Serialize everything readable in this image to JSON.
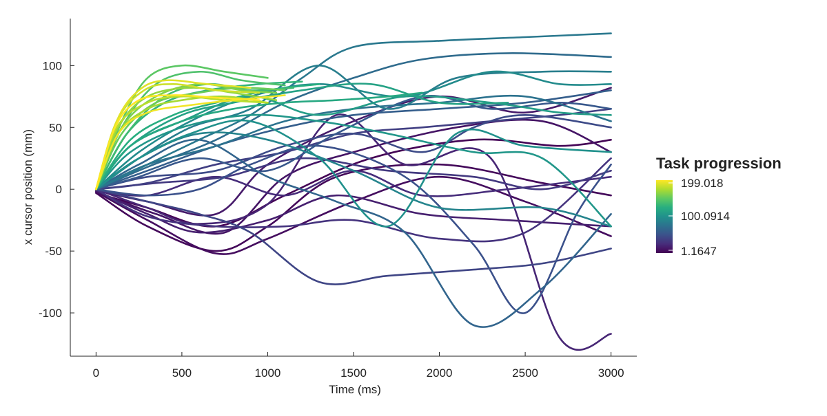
{
  "chart_data": {
    "type": "line",
    "title": "",
    "xlabel": "Time (ms)",
    "ylabel": "x cursor position (mm)",
    "xlim": [
      -150,
      3150
    ],
    "ylim": [
      -135,
      138
    ],
    "x_ticks": [
      0,
      500,
      1000,
      1500,
      2000,
      2500,
      3000
    ],
    "x_tick_labels": [
      "0",
      "500",
      "1000",
      "1500",
      "2000",
      "2500",
      "3000"
    ],
    "y_ticks": [
      -100,
      -50,
      0,
      50,
      100
    ],
    "y_tick_labels": [
      "-100",
      "-50",
      "0",
      "50",
      "100"
    ],
    "grid": false,
    "colorbar": {
      "title": "Task progression",
      "colormap": "viridis",
      "range": [
        1.1647,
        199.018
      ],
      "tick_labels": [
        "199.018",
        "100.0914",
        "1.1647"
      ],
      "legend_position": "right"
    },
    "series": [
      {
        "progress": 2,
        "x": [
          0,
          300,
          700,
          1100,
          1600,
          2200,
          2700,
          3000
        ],
        "y": [
          -3,
          -15,
          -30,
          -5,
          25,
          40,
          35,
          40
        ]
      },
      {
        "progress": 5,
        "x": [
          0,
          300,
          700,
          1000,
          1400,
          2000,
          2600,
          3000
        ],
        "y": [
          -3,
          -30,
          -50,
          -30,
          10,
          20,
          5,
          -5
        ]
      },
      {
        "progress": 8,
        "x": [
          0,
          300,
          700,
          1000,
          1500,
          2000,
          2500,
          3000
        ],
        "y": [
          -2,
          -25,
          -52,
          -40,
          -10,
          10,
          -10,
          -38
        ]
      },
      {
        "progress": 12,
        "x": [
          0,
          350,
          750,
          1100,
          1500,
          2100,
          2600,
          3000
        ],
        "y": [
          -2,
          -20,
          -35,
          10,
          30,
          50,
          55,
          30
        ]
      },
      {
        "progress": 15,
        "x": [
          0,
          300,
          700,
          1000,
          1500,
          2000,
          2500,
          3000
        ],
        "y": [
          -1,
          -10,
          -20,
          20,
          55,
          75,
          62,
          82
        ]
      },
      {
        "progress": 18,
        "x": [
          0,
          300,
          600,
          1000,
          1400,
          1900,
          2400,
          3000
        ],
        "y": [
          -1,
          -20,
          -35,
          -25,
          -5,
          -20,
          -25,
          -30
        ]
      },
      {
        "progress": 22,
        "x": [
          0,
          300,
          600,
          1000,
          1400,
          1800,
          2300,
          2700,
          3000
        ],
        "y": [
          0,
          -15,
          -28,
          -12,
          60,
          20,
          25,
          -120,
          -117
        ]
      },
      {
        "progress": 26,
        "x": [
          0,
          300,
          700,
          1100,
          1500,
          1900,
          2400,
          3000
        ],
        "y": [
          0,
          -5,
          10,
          -5,
          15,
          -5,
          0,
          10
        ]
      },
      {
        "progress": 30,
        "x": [
          0,
          300,
          700,
          1100,
          1500,
          2000,
          2500,
          3000
        ],
        "y": [
          0,
          -22,
          -30,
          -30,
          -25,
          -40,
          -35,
          25
        ]
      },
      {
        "progress": 34,
        "x": [
          0,
          350,
          750,
          1200,
          1700,
          2200,
          2600,
          3000
        ],
        "y": [
          0,
          5,
          10,
          25,
          15,
          10,
          0,
          15
        ]
      },
      {
        "progress": 38,
        "x": [
          0,
          300,
          700,
          1100,
          1500,
          1900,
          2300,
          2700,
          3000
        ],
        "y": [
          0,
          5,
          20,
          30,
          45,
          50,
          55,
          60,
          65
        ]
      },
      {
        "progress": 42,
        "x": [
          0,
          300,
          600,
          900,
          1300,
          1700,
          2200,
          2600,
          3000
        ],
        "y": [
          0,
          -10,
          -20,
          -35,
          -75,
          -70,
          -65,
          -60,
          -48
        ]
      },
      {
        "progress": 46,
        "x": [
          0,
          300,
          700,
          1100,
          1500,
          1900,
          2200,
          2500,
          3000
        ],
        "y": [
          0,
          10,
          15,
          35,
          45,
          30,
          50,
          60,
          50
        ]
      },
      {
        "progress": 50,
        "x": [
          0,
          300,
          600,
          900,
          1300,
          1800,
          2200,
          2500,
          2800,
          3000
        ],
        "y": [
          0,
          -5,
          0,
          20,
          35,
          10,
          -45,
          -100,
          -20,
          20
        ]
      },
      {
        "progress": 55,
        "x": [
          0,
          250,
          600,
          1000,
          1400,
          1900,
          2300,
          2700,
          3000
        ],
        "y": [
          0,
          10,
          25,
          15,
          45,
          75,
          65,
          70,
          65
        ]
      },
      {
        "progress": 60,
        "x": [
          0,
          300,
          700,
          1100,
          1500,
          2000,
          2500,
          3000
        ],
        "y": [
          0,
          15,
          35,
          50,
          60,
          65,
          70,
          80
        ]
      },
      {
        "progress": 65,
        "x": [
          0,
          250,
          600,
          1000,
          1400,
          1800,
          2200,
          2600,
          3000
        ],
        "y": [
          0,
          20,
          40,
          10,
          -10,
          -35,
          -110,
          -80,
          -20
        ]
      },
      {
        "progress": 70,
        "x": [
          0,
          300,
          700,
          1100,
          1500,
          1900,
          2400,
          3000
        ],
        "y": [
          0,
          18,
          40,
          70,
          90,
          105,
          110,
          107
        ]
      },
      {
        "progress": 75,
        "x": [
          0,
          300,
          700,
          1100,
          1500,
          2000,
          2500,
          3000
        ],
        "y": [
          0,
          20,
          35,
          55,
          65,
          70,
          75,
          55
        ]
      },
      {
        "progress": 80,
        "x": [
          0,
          300,
          600,
          900,
          1200,
          1500,
          2000,
          2500,
          3000
        ],
        "y": [
          0,
          20,
          40,
          60,
          90,
          115,
          120,
          123,
          126
        ]
      },
      {
        "progress": 85,
        "x": [
          0,
          250,
          550,
          900,
          1300,
          1700,
          2100,
          2600,
          3000
        ],
        "y": [
          0,
          25,
          50,
          65,
          100,
          65,
          90,
          95,
          95
        ]
      },
      {
        "progress": 90,
        "x": [
          0,
          250,
          600,
          1000,
          1500,
          2000,
          2600,
          3000
        ],
        "y": [
          0,
          25,
          45,
          40,
          15,
          -15,
          -15,
          -30
        ]
      },
      {
        "progress": 95,
        "x": [
          0,
          250,
          550,
          900,
          1300,
          1800,
          2300,
          2700,
          3000
        ],
        "y": [
          0,
          30,
          55,
          75,
          85,
          75,
          95,
          85,
          85
        ]
      },
      {
        "progress": 100,
        "x": [
          0,
          250,
          550,
          900,
          1300,
          1700,
          2100,
          2500,
          3000
        ],
        "y": [
          0,
          25,
          45,
          55,
          25,
          -30,
          45,
          35,
          30
        ]
      },
      {
        "progress": 105,
        "x": [
          0,
          200,
          500,
          900,
          1300,
          1700,
          2200,
          2600,
          3000
        ],
        "y": [
          0,
          30,
          50,
          60,
          55,
          45,
          30,
          25,
          -30
        ]
      },
      {
        "progress": 110,
        "x": [
          0,
          200,
          500,
          900,
          1300,
          1800,
          2300,
          2700,
          3000
        ],
        "y": [
          0,
          35,
          55,
          75,
          60,
          75,
          70,
          62,
          60
        ]
      },
      {
        "progress": 115,
        "x": [
          0,
          200,
          500,
          800,
          1200,
          1600,
          2000,
          2400
        ],
        "y": [
          0,
          35,
          60,
          70,
          80,
          85,
          70,
          70
        ]
      },
      {
        "progress": 120,
        "x": [
          0,
          200,
          500,
          800,
          1100,
          1400,
          1700,
          1900
        ],
        "y": [
          0,
          35,
          55,
          65,
          70,
          72,
          75,
          78
        ]
      },
      {
        "progress": 125,
        "x": [
          0,
          200,
          450,
          700,
          1000,
          1300
        ],
        "y": [
          0,
          40,
          60,
          70,
          80,
          85
        ]
      },
      {
        "progress": 130,
        "x": [
          0,
          180,
          400,
          650,
          950,
          1200
        ],
        "y": [
          0,
          45,
          70,
          80,
          85,
          87
        ]
      },
      {
        "progress": 136,
        "x": [
          0,
          180,
          400,
          650,
          900,
          1150
        ],
        "y": [
          0,
          45,
          75,
          85,
          80,
          82
        ]
      },
      {
        "progress": 142,
        "x": [
          0,
          150,
          350,
          600,
          850,
          1100
        ],
        "y": [
          0,
          50,
          85,
          95,
          88,
          84
        ]
      },
      {
        "progress": 148,
        "x": [
          0,
          150,
          300,
          500,
          750,
          1000
        ],
        "y": [
          0,
          55,
          90,
          100,
          95,
          90
        ]
      },
      {
        "progress": 154,
        "x": [
          0,
          150,
          350,
          600,
          850,
          1100
        ],
        "y": [
          0,
          45,
          70,
          78,
          82,
          80
        ]
      },
      {
        "progress": 160,
        "x": [
          0,
          150,
          350,
          600,
          850,
          1050
        ],
        "y": [
          0,
          50,
          75,
          85,
          80,
          78
        ]
      },
      {
        "progress": 166,
        "x": [
          0,
          130,
          300,
          550,
          800,
          1050
        ],
        "y": [
          0,
          50,
          75,
          82,
          78,
          72
        ]
      },
      {
        "progress": 172,
        "x": [
          0,
          130,
          300,
          500,
          750,
          1000
        ],
        "y": [
          0,
          45,
          65,
          72,
          75,
          70
        ]
      },
      {
        "progress": 178,
        "x": [
          0,
          120,
          300,
          500,
          750,
          1000
        ],
        "y": [
          0,
          50,
          70,
          75,
          72,
          70
        ]
      },
      {
        "progress": 184,
        "x": [
          0,
          120,
          280,
          450,
          700,
          950
        ],
        "y": [
          0,
          55,
          80,
          85,
          80,
          78
        ]
      },
      {
        "progress": 190,
        "x": [
          0,
          120,
          250,
          400,
          650,
          900
        ],
        "y": [
          0,
          55,
          80,
          88,
          85,
          82
        ]
      },
      {
        "progress": 195,
        "x": [
          0,
          130,
          300,
          550,
          800,
          1100
        ],
        "y": [
          0,
          45,
          62,
          68,
          72,
          76
        ]
      },
      {
        "progress": 199,
        "x": [
          0,
          110,
          250,
          450,
          700,
          950
        ],
        "y": [
          0,
          50,
          72,
          76,
          74,
          72
        ]
      }
    ]
  }
}
